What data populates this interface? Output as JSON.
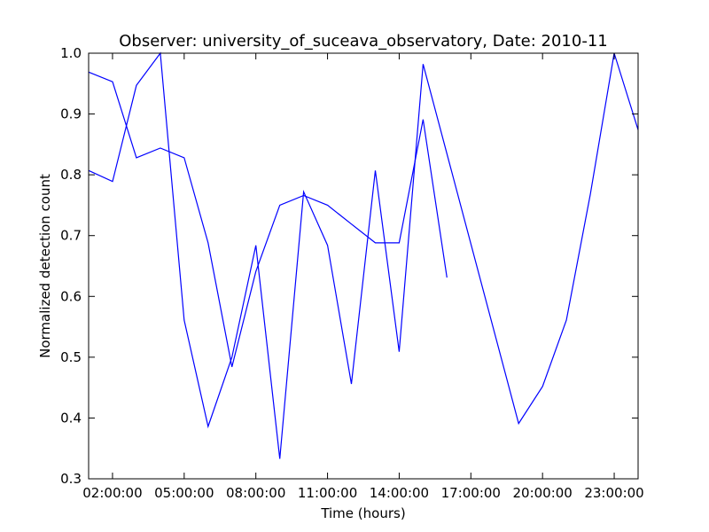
{
  "chart_data": {
    "type": "line",
    "title": "Observer: university_of_suceava_observatory, Date: 2010-11",
    "xlabel": "Time (hours)",
    "ylabel": "Normalized detection count",
    "xlim": [
      "01:00:00",
      "24:00:00"
    ],
    "ylim": [
      0.3,
      1.0
    ],
    "grid": false,
    "line_color": "#0000ff",
    "x_ticks": [
      "02:00:00",
      "05:00:00",
      "08:00:00",
      "11:00:00",
      "14:00:00",
      "17:00:00",
      "20:00:00",
      "23:00:00"
    ],
    "y_ticks": [
      "0.3",
      "0.4",
      "0.5",
      "0.6",
      "0.7",
      "0.8",
      "0.9",
      "1.0"
    ],
    "series": [
      {
        "x": [
          "01:00:00",
          "02:00:00",
          "03:00:00",
          "04:00:00",
          "05:00:00",
          "06:00:00",
          "07:00:00",
          "08:00:00",
          "09:00:00",
          "10:00:00",
          "11:00:00",
          "12:00:00",
          "13:00:00",
          "14:00:00",
          "15:00:00",
          "19:00:00",
          "20:00:00",
          "21:00:00",
          "22:00:00",
          "23:00:00",
          "24:00:00"
        ],
        "y": [
          0.807,
          0.789,
          0.947,
          1.0,
          0.561,
          0.386,
          0.5,
          0.684,
          0.333,
          0.772,
          0.684,
          0.456,
          0.807,
          0.509,
          0.982,
          0.391,
          0.452,
          0.561,
          0.768,
          1.0,
          0.874
        ]
      },
      {
        "x": [
          "01:00:00",
          "02:00:00",
          "03:00:00",
          "04:00:00",
          "05:00:00",
          "06:00:00",
          "07:00:00",
          "08:00:00",
          "09:00:00",
          "10:00:00",
          "11:00:00",
          "12:00:00",
          "13:00:00",
          "14:00:00",
          "15:00:00",
          "16:00:00"
        ],
        "y": [
          0.969,
          0.953,
          0.828,
          0.844,
          0.828,
          0.688,
          0.484,
          0.641,
          0.75,
          0.766,
          0.75,
          0.719,
          0.688,
          0.688,
          0.891,
          0.631
        ]
      }
    ]
  }
}
